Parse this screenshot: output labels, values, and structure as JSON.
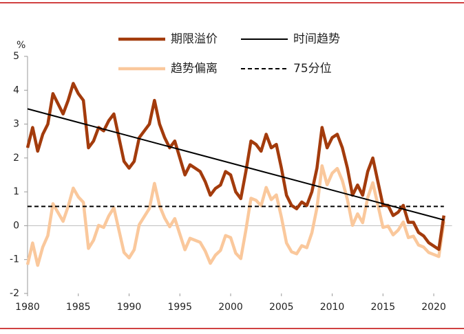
{
  "chart_data": {
    "type": "line",
    "y_label": "%",
    "x": [
      1980,
      1980.5,
      1981,
      1981.5,
      1982,
      1982.5,
      1983,
      1983.5,
      1984,
      1984.5,
      1985,
      1985.5,
      1986,
      1986.5,
      1987,
      1987.5,
      1988,
      1988.5,
      1989,
      1989.5,
      1990,
      1990.5,
      1991,
      1991.5,
      1992,
      1992.5,
      1993,
      1993.5,
      1994,
      1994.5,
      1995,
      1995.5,
      1996,
      1996.5,
      1997,
      1997.5,
      1998,
      1998.5,
      1999,
      1999.5,
      2000,
      2000.5,
      2001,
      2001.5,
      2002,
      2002.5,
      2003,
      2003.5,
      2004,
      2004.5,
      2005,
      2005.5,
      2006,
      2006.5,
      2007,
      2007.5,
      2008,
      2008.5,
      2009,
      2009.5,
      2010,
      2010.5,
      2011,
      2011.5,
      2012,
      2012.5,
      2013,
      2013.5,
      2014,
      2014.5,
      2015,
      2015.5,
      2016,
      2016.5,
      2017,
      2017.5,
      2018,
      2018.5,
      2019,
      2019.5,
      2020,
      2020.5,
      2021
    ],
    "series": [
      {
        "name": "期限溢价",
        "color": "#a33b0c",
        "width": 4.5,
        "values": [
          2.3,
          2.9,
          2.2,
          2.7,
          3.0,
          3.9,
          3.6,
          3.3,
          3.7,
          4.2,
          3.9,
          3.7,
          2.3,
          2.5,
          2.9,
          2.8,
          3.1,
          3.3,
          2.6,
          1.9,
          1.7,
          1.9,
          2.6,
          2.8,
          3.0,
          3.7,
          3.0,
          2.6,
          2.3,
          2.5,
          2.0,
          1.5,
          1.8,
          1.7,
          1.6,
          1.3,
          0.9,
          1.1,
          1.2,
          1.6,
          1.5,
          1.0,
          0.8,
          1.6,
          2.5,
          2.4,
          2.2,
          2.7,
          2.3,
          2.4,
          1.7,
          0.9,
          0.6,
          0.5,
          0.7,
          0.6,
          1.0,
          1.7,
          2.9,
          2.3,
          2.6,
          2.7,
          2.3,
          1.7,
          0.9,
          1.2,
          0.9,
          1.6,
          2.0,
          1.3,
          0.6,
          0.6,
          0.3,
          0.4,
          0.6,
          0.1,
          0.1,
          -0.2,
          -0.3,
          -0.5,
          -0.6,
          -0.7,
          0.3
        ]
      },
      {
        "name": "趋势偏离",
        "color": "#fac89c",
        "width": 4.5,
        "values": [
          -1.15,
          -0.51,
          -1.17,
          -0.63,
          -0.29,
          0.65,
          0.39,
          0.13,
          0.57,
          1.11,
          0.85,
          0.69,
          -0.67,
          -0.43,
          0.01,
          -0.05,
          0.29,
          0.53,
          -0.13,
          -0.79,
          -0.95,
          -0.71,
          0.03,
          0.27,
          0.51,
          1.25,
          0.59,
          0.23,
          -0.03,
          0.21,
          -0.25,
          -0.71,
          -0.37,
          -0.43,
          -0.49,
          -0.75,
          -1.11,
          -0.87,
          -0.73,
          -0.29,
          -0.35,
          -0.81,
          -0.97,
          -0.13,
          0.81,
          0.75,
          0.59,
          1.13,
          0.77,
          0.91,
          0.25,
          -0.51,
          -0.77,
          -0.83,
          -0.59,
          -0.65,
          -0.21,
          0.53,
          1.77,
          1.21,
          1.55,
          1.69,
          1.33,
          0.77,
          0.01,
          0.35,
          0.09,
          0.83,
          1.27,
          0.61,
          -0.05,
          -0.01,
          -0.27,
          -0.13,
          0.11,
          -0.35,
          -0.31,
          -0.57,
          -0.63,
          -0.79,
          -0.85,
          -0.91,
          0.13
        ]
      },
      {
        "name": "时间趋势",
        "color": "#000000",
        "width": 2,
        "x": [
          1980,
          2021
        ],
        "values": [
          3.45,
          0.17
        ]
      },
      {
        "name": "75分位",
        "color": "#000000",
        "width": 2,
        "dash": true,
        "x": [
          1980,
          2021
        ],
        "values": [
          0.57,
          0.57
        ]
      }
    ],
    "xlim": [
      1980,
      2021.8
    ],
    "xticks": [
      1980,
      1985,
      1990,
      1995,
      2000,
      2005,
      2010,
      2015,
      2020
    ],
    "ylim": [
      -2,
      5
    ],
    "yticks": [
      -2,
      -1,
      0,
      1,
      2,
      3,
      4,
      5
    ]
  }
}
